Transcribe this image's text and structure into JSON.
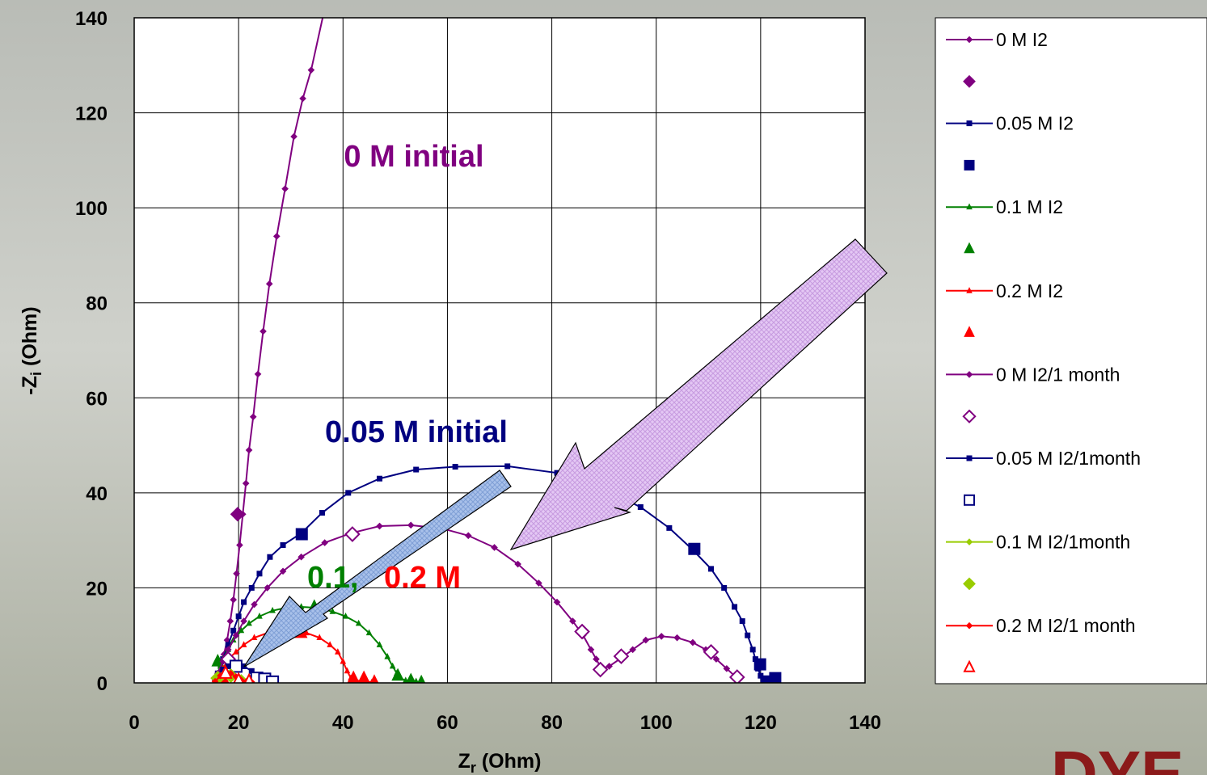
{
  "chart_data": {
    "type": "line",
    "x_label": [
      "Z",
      "r",
      " (Ohm)"
    ],
    "y_label": [
      "-Z",
      "i",
      " (Ohm)"
    ],
    "xlim": [
      0,
      140
    ],
    "xticks": [
      0,
      20,
      40,
      60,
      80,
      100,
      120,
      140
    ],
    "ylim": [
      0,
      140
    ],
    "yticks": [
      0,
      20,
      40,
      60,
      80,
      100,
      120,
      140
    ],
    "grid": true,
    "legend": "right",
    "annotations": [
      "0 M initial",
      "0.05 M initial",
      "0.1,",
      "0.2 M"
    ],
    "logo": "DYE",
    "series": [
      {
        "name": "0 M I2",
        "color": "#800080",
        "marker": "diamond",
        "filled": true,
        "line": true,
        "x": [
          15.5,
          16,
          16.6,
          17.2,
          17.8,
          18.4,
          19,
          19.6,
          20.2,
          20.8,
          21.4,
          22,
          22.8,
          23.7,
          24.7,
          25.9,
          27.3,
          28.9,
          30.6,
          32.3,
          33.9,
          36.5
        ],
        "values": [
          0.3,
          1.5,
          3.5,
          6,
          9,
          13,
          17.5,
          23,
          29,
          35.5,
          42,
          49,
          56,
          65,
          74,
          84,
          94,
          104,
          115,
          123,
          129,
          142
        ]
      },
      {
        "color": "#800080",
        "marker": "diamond",
        "filled": true,
        "line": false,
        "x": [
          19.8
        ],
        "values": [
          35.5
        ]
      },
      {
        "name": "0.05 M I2",
        "color": "#000080",
        "marker": "square",
        "filled": true,
        "line": true,
        "x": [
          15.5,
          16,
          17,
          18,
          19,
          20,
          21,
          22.5,
          24,
          26,
          28.5,
          32,
          36,
          41,
          47,
          54,
          61.5,
          71.5,
          81,
          89.5,
          97,
          102.5,
          107,
          110.5,
          113,
          115,
          116.5,
          117.5,
          118.5,
          119,
          119.5,
          120,
          120.5,
          121,
          122,
          123
        ],
        "values": [
          0,
          2,
          5,
          8,
          11,
          14,
          17,
          20,
          23,
          26.5,
          29,
          31.5,
          35.8,
          40,
          43,
          44.9,
          45.5,
          45.6,
          44.2,
          41,
          37,
          32.6,
          28,
          24,
          20,
          16,
          13,
          10,
          7,
          5,
          3,
          1.5,
          0.5,
          0.2,
          0.3,
          1
        ]
      },
      {
        "color": "#000080",
        "marker": "square",
        "filled": true,
        "line": false,
        "x": [
          32.1,
          107.3,
          119.9,
          121.5,
          122.8
        ],
        "values": [
          31.3,
          28.2,
          3.9,
          0.3,
          1
        ]
      },
      {
        "name": "0.1 M I2",
        "color": "#008000",
        "marker": "triangle",
        "filled": true,
        "line": true,
        "x": [
          15.5,
          16,
          16.5,
          17,
          18,
          19,
          20.5,
          22,
          24,
          26.5,
          29,
          32,
          35,
          38,
          40.5,
          43,
          45,
          47,
          48.5,
          49.5,
          50.3,
          51,
          52,
          53,
          54,
          55
        ],
        "values": [
          0.5,
          2,
          3.5,
          5,
          7,
          9,
          11,
          12.5,
          14,
          15.2,
          15.8,
          16,
          15.8,
          15,
          14,
          12.5,
          10.5,
          8,
          5.5,
          3.5,
          2,
          1,
          0.5,
          0.6,
          0.3,
          0
        ]
      },
      {
        "color": "#008000",
        "marker": "triangle",
        "filled": true,
        "line": false,
        "x": [
          16,
          34.5,
          50.5,
          53,
          55
        ],
        "values": [
          4.5,
          16,
          1.5,
          0.5,
          0.1
        ]
      },
      {
        "name": "0.2 M I2",
        "color": "#ff0000",
        "marker": "triangle",
        "filled": true,
        "line": true,
        "x": [
          15.5,
          16,
          17,
          18,
          19.5,
          21,
          23,
          25.5,
          28,
          30.5,
          33,
          35.5,
          37.5,
          39,
          40,
          40.8,
          41.5,
          42.5,
          43.5,
          44.5,
          45.5
        ],
        "values": [
          0.3,
          1.5,
          3,
          5,
          6.5,
          8,
          9.5,
          10.5,
          11,
          11,
          10.5,
          9.5,
          8,
          6.5,
          4.5,
          2.5,
          1,
          0.5,
          0.4,
          0.3,
          0.1
        ]
      },
      {
        "color": "#ff0000",
        "marker": "triangle",
        "filled": true,
        "line": false,
        "x": [
          17,
          32,
          42,
          44,
          46
        ],
        "values": [
          1,
          10.5,
          1,
          1,
          0.2
        ]
      },
      {
        "name": "0 M I2/1 month",
        "color": "#800080",
        "marker": "diamond",
        "filled": true,
        "line": true,
        "x": [
          15.5,
          16,
          17,
          18,
          19.5,
          21,
          23,
          25.5,
          28.5,
          32,
          36.5,
          41.5,
          47,
          53,
          59,
          64,
          69,
          73.5,
          77.5,
          81,
          84,
          86,
          87.5,
          88.5,
          89.5,
          91,
          93,
          95.5,
          98,
          101,
          104,
          107,
          109.5,
          111.5,
          113.5,
          115,
          116
        ],
        "values": [
          0.5,
          2,
          4.5,
          7,
          10,
          13,
          16.5,
          20,
          23.5,
          26.5,
          29.5,
          31.5,
          33,
          33.2,
          32.5,
          31,
          28.5,
          25,
          21,
          17,
          13,
          10,
          7,
          5,
          3,
          3.5,
          5,
          7,
          9,
          9.8,
          9.5,
          8.5,
          7,
          5,
          3,
          1.5,
          0.8
        ]
      },
      {
        "color": "#800080",
        "marker": "diamond",
        "filled": false,
        "line": false,
        "x": [
          18,
          41.8,
          85.8,
          89.3,
          93.3,
          110.5,
          115.5
        ],
        "values": [
          5,
          31.3,
          10.8,
          2.8,
          5.6,
          6.5,
          1.2
        ]
      },
      {
        "name": "0.05 M I2/1month",
        "color": "#000080",
        "marker": "square",
        "filled": true,
        "line": true,
        "x": [
          15.5,
          16,
          17,
          18,
          19.5,
          21,
          22.5,
          23.5,
          24.5,
          25.5,
          26.5
        ],
        "values": [
          0.5,
          1.5,
          2.8,
          3.5,
          3.8,
          3.5,
          2.5,
          1.5,
          0.8,
          0.6,
          0.5
        ]
      },
      {
        "color": "#000080",
        "marker": "square",
        "filled": false,
        "line": false,
        "x": [
          19.5,
          23.5,
          25,
          26.5
        ],
        "values": [
          3.5,
          1,
          0.8,
          0.2
        ]
      },
      {
        "name": "0.1 M I2/1month",
        "color": "#99cc00",
        "marker": "diamond",
        "filled": true,
        "line": true,
        "x": [
          15.5,
          16,
          17,
          18,
          19,
          20,
          21
        ],
        "values": [
          0.3,
          1,
          1.8,
          2,
          1.6,
          0.9,
          0.3
        ]
      },
      {
        "color": "#99cc00",
        "marker": "diamond",
        "filled": true,
        "line": false,
        "x": [
          16,
          18.5,
          20.5
        ],
        "values": [
          1,
          1.5,
          0.3
        ]
      },
      {
        "name": "0.2 M I2/1 month",
        "color": "#ff0000",
        "marker": "diamond",
        "filled": true,
        "line": true,
        "x": [
          15.5,
          16.5,
          17.5,
          18.5,
          19.5,
          20.5,
          21.5,
          22.5
        ],
        "values": [
          0.3,
          1.5,
          2.2,
          2,
          1.3,
          0.6,
          0.3,
          0.2
        ]
      },
      {
        "color": "#ff0000",
        "marker": "triangle",
        "filled": false,
        "line": false,
        "x": [
          17.5,
          20,
          22
        ],
        "values": [
          2,
          0.5,
          0.3
        ]
      }
    ]
  }
}
